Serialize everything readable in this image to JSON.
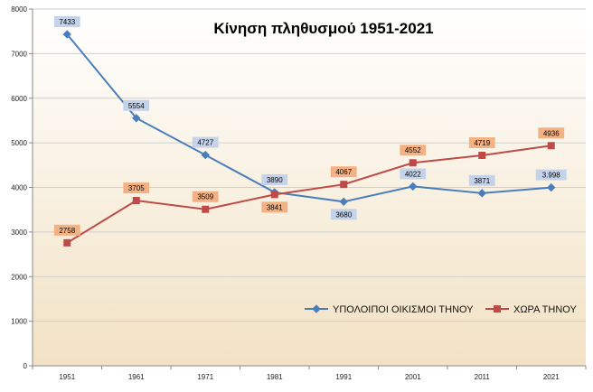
{
  "chart_data": {
    "type": "line",
    "title": "Κίνηση πληθυσμού  1951-2021",
    "xlabel": "",
    "ylabel": "",
    "categories": [
      "1951",
      "1961",
      "1971",
      "1981",
      "1991",
      "2001",
      "2011",
      "2021"
    ],
    "ylim": [
      0,
      8000
    ],
    "yticks": [
      "0",
      "1000",
      "2000",
      "3000",
      "4000",
      "5000",
      "6000",
      "7000",
      "8000"
    ],
    "grid": true,
    "legend_position": "bottom-right",
    "series": [
      {
        "name": "ΥΠΟΛΟΙΠΟΙ ΟΙΚΙΣΜΟΙ ΤΗΝΟΥ",
        "color": "#4a7ebb",
        "label_bg": "#c5d3ea",
        "marker": "diamond",
        "values": [
          7433,
          5554,
          4727,
          3890,
          3680,
          4022,
          3871,
          3998
        ],
        "labels": [
          "7433",
          "5554",
          "4727",
          "3890",
          "3680",
          "4022",
          "3871",
          "3.998"
        ]
      },
      {
        "name": "ΧΩΡΑ  ΤΗΝΟΥ",
        "color": "#be4b48",
        "label_bg": "#f4b184",
        "marker": "square",
        "values": [
          2758,
          3705,
          3509,
          3841,
          4067,
          4552,
          4719,
          4936
        ],
        "labels": [
          "2758",
          "3705",
          "3509",
          "3841",
          "4067",
          "4552",
          "4719",
          "4936"
        ]
      }
    ]
  }
}
